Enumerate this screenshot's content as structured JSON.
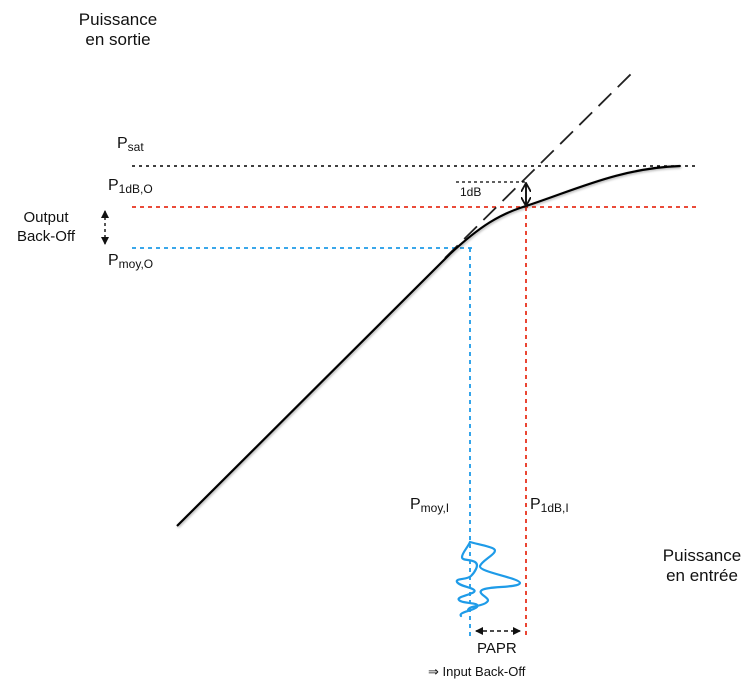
{
  "axes": {
    "y_label_line1": "Puissance",
    "y_label_line2": "en sortie",
    "x_label_line1": "Puissance",
    "x_label_line2": "en entrée"
  },
  "levels": {
    "psat": {
      "main": "P",
      "sub": "sat"
    },
    "p1db_o": {
      "main": "P",
      "sub": "1dB,O"
    },
    "pmoy_o": {
      "main": "P",
      "sub": "moy,O"
    },
    "pmoy_i": {
      "main": "P",
      "sub": "moy,I"
    },
    "p1db_i": {
      "main": "P",
      "sub": "1dB,I"
    }
  },
  "annotations": {
    "obo_line1": "Output",
    "obo_line2": "Back-Off",
    "compression": "1dB",
    "papr": "PAPR",
    "ibo": "⇒ Input Back-Off"
  },
  "colors": {
    "axis": "#1a1a1a",
    "curve": "#000000",
    "saturation_line": "#000000",
    "compression_line": "#e8321e",
    "average_line": "#1e9be8",
    "signal": "#1e9be8",
    "asymptote": "#222222"
  }
}
